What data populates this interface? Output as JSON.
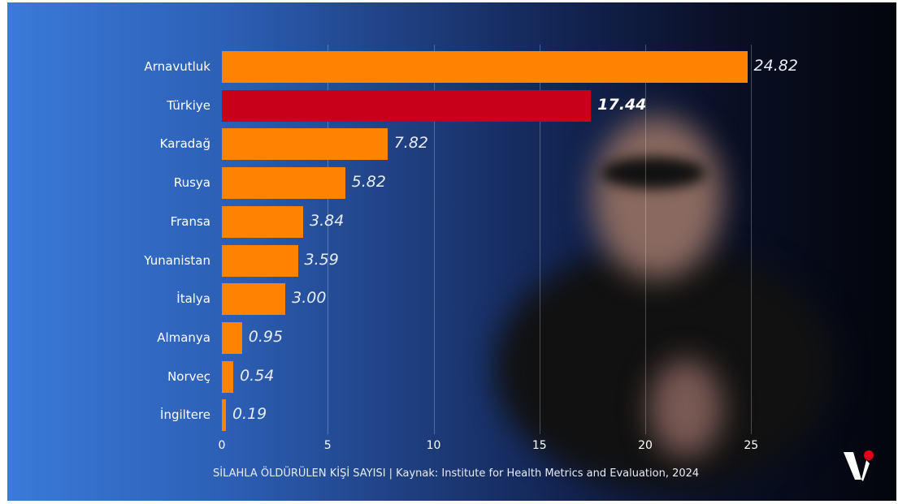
{
  "chart_data": {
    "type": "bar",
    "orientation": "horizontal",
    "categories": [
      "Arnavutluk",
      "Türkiye",
      "Karadağ",
      "Rusya",
      "Fransa",
      "Yunanistan",
      "İtalya",
      "Almanya",
      "Norveç",
      "İngiltere"
    ],
    "values": [
      24.82,
      17.44,
      7.82,
      5.82,
      3.84,
      3.59,
      3.0,
      0.95,
      0.54,
      0.19
    ],
    "value_labels": [
      "24.82",
      "17.44",
      "7.82",
      "5.82",
      "3.84",
      "3.59",
      "3.00",
      "0.95",
      "0.54",
      "0.19"
    ],
    "highlight": "Türkiye",
    "xlim": [
      0,
      25
    ],
    "xticks": [
      "0",
      "5",
      "10",
      "15",
      "20",
      "25"
    ],
    "grid": true,
    "caption": "SİLAHLA ÖLDÜRÜLEN KİŞİ SAYISI | Kaynak: Institute for Health Metrics and Evaluation, 2024",
    "colors": {
      "bar": "#ff8200",
      "highlight": "#c8001a"
    }
  },
  "logo": "V"
}
